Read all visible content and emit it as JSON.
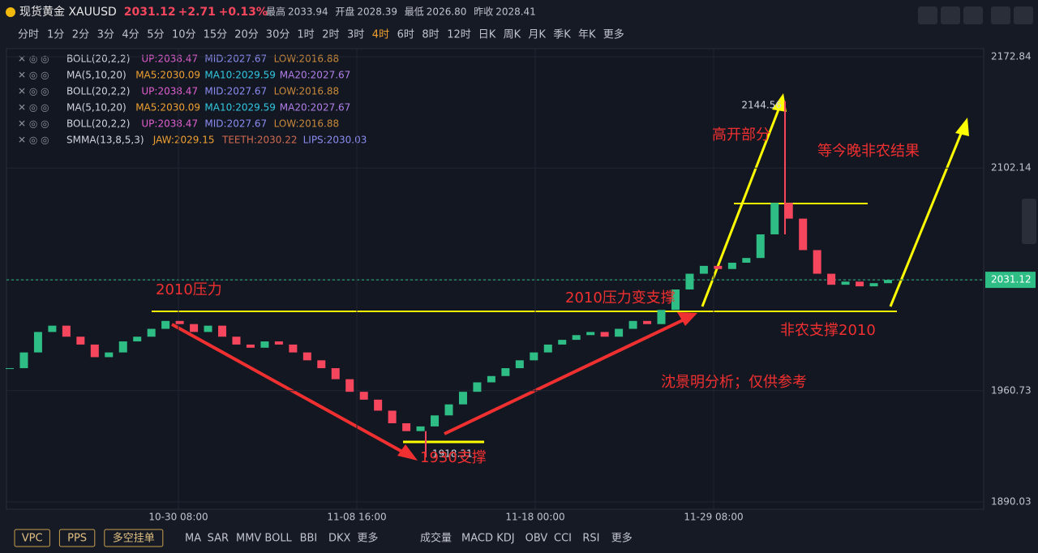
{
  "header": {
    "name": "现货黄金 XAUUSD",
    "price": "2031.12",
    "change": "+2.71",
    "change_pct": "+0.13%",
    "stats": [
      {
        "label": "最高",
        "value": "2033.94"
      },
      {
        "label": "开盘",
        "value": "2028.39"
      },
      {
        "label": "最低",
        "value": "2026.80"
      },
      {
        "label": "昨收",
        "value": "2028.41"
      }
    ]
  },
  "timeframes": [
    {
      "label": "分时"
    },
    {
      "label": "1分"
    },
    {
      "label": "2分"
    },
    {
      "label": "3分"
    },
    {
      "label": "4分"
    },
    {
      "label": "5分"
    },
    {
      "label": "10分"
    },
    {
      "label": "15分"
    },
    {
      "label": "20分"
    },
    {
      "label": "30分"
    },
    {
      "label": "1时"
    },
    {
      "label": "2时"
    },
    {
      "label": "3时"
    },
    {
      "label": "4时",
      "active": true
    },
    {
      "label": "6时"
    },
    {
      "label": "8时"
    },
    {
      "label": "12时"
    },
    {
      "label": "日K"
    },
    {
      "label": "周K"
    },
    {
      "label": "月K"
    },
    {
      "label": "季K"
    },
    {
      "label": "年K"
    },
    {
      "label": "更多"
    }
  ],
  "indicators": [
    [
      {
        "text": "BOLL(20,2,2)",
        "color": "#d0d3dc"
      },
      {
        "text": "UP:2038.47",
        "color": "#e05fd0"
      },
      {
        "text": "MID:2027.67",
        "color": "#8a8cf0"
      },
      {
        "text": "LOW:2016.88",
        "color": "#c8893a"
      }
    ],
    [
      {
        "text": "MA(5,10,20)",
        "color": "#d0d3dc"
      },
      {
        "text": "MA5:2030.09",
        "color": "#f0a030"
      },
      {
        "text": "MA10:2029.59",
        "color": "#30c8e0"
      },
      {
        "text": "MA20:2027.67",
        "color": "#b07ee8"
      }
    ],
    [
      {
        "text": "BOLL(20,2,2)",
        "color": "#d0d3dc"
      },
      {
        "text": "UP:2038.47",
        "color": "#e05fd0"
      },
      {
        "text": "MID:2027.67",
        "color": "#8a8cf0"
      },
      {
        "text": "LOW:2016.88",
        "color": "#c8893a"
      }
    ],
    [
      {
        "text": "MA(5,10,20)",
        "color": "#d0d3dc"
      },
      {
        "text": "MA5:2030.09",
        "color": "#f0a030"
      },
      {
        "text": "MA10:2029.59",
        "color": "#30c8e0"
      },
      {
        "text": "MA20:2027.67",
        "color": "#b07ee8"
      }
    ],
    [
      {
        "text": "BOLL(20,2,2)",
        "color": "#d0d3dc"
      },
      {
        "text": "UP:2038.47",
        "color": "#e05fd0"
      },
      {
        "text": "MID:2027.67",
        "color": "#8a8cf0"
      },
      {
        "text": "LOW:2016.88",
        "color": "#c8893a"
      }
    ],
    [
      {
        "text": "SMMA(13,8,5,3)",
        "color": "#d0d3dc"
      },
      {
        "text": "JAW:2029.15",
        "color": "#f0a030"
      },
      {
        "text": "TEETH:2030.22",
        "color": "#d06a50"
      },
      {
        "text": "LIPS:2030.03",
        "color": "#8a8cf0"
      }
    ]
  ],
  "chart_data": {
    "type": "candlestick",
    "up_color": "#2ebd85",
    "down_color": "#f6465d",
    "values": [
      1975,
      1985,
      1998,
      2002,
      1995,
      1990,
      1982,
      1985,
      1992,
      1995,
      2000,
      2005,
      2003,
      1998,
      2002,
      1995,
      1990,
      1988,
      1992,
      1990,
      1985,
      1980,
      1975,
      1968,
      1960,
      1955,
      1948,
      1940,
      1935,
      1938,
      1945,
      1952,
      1960,
      1966,
      1970,
      1975,
      1980,
      1985,
      1990,
      1993,
      1996,
      1998,
      1995,
      2000,
      2005,
      2003,
      2012,
      2025,
      2035,
      2040,
      2038,
      2042,
      2045,
      2060,
      2080,
      2070,
      2050,
      2035,
      2028,
      2030,
      2027,
      2029,
      2031.12
    ],
    "ylim": [
      1890.03,
      2172.84
    ],
    "yticks": [
      2172.84,
      2102.14,
      2031.12,
      1960.73,
      1890.03
    ],
    "current_price": 2031.12,
    "xtick_labels": [
      "10-30 08:00",
      "11-08 16:00",
      "11-18 00:00",
      "11-29 08:00"
    ],
    "high_marker": 2144.56,
    "low_marker": 1918.31,
    "annotations": [
      "2010压力",
      "2010压力变支撑",
      "1930支撑",
      "高开部分",
      "等今晚非农结果",
      "非农支撑2010",
      "沈景明分析；仅供参考"
    ]
  },
  "bottom_bar": {
    "buttons": [
      "VPC",
      "PPS",
      "多空挂单"
    ],
    "main_indicators": [
      "MA",
      "SAR",
      "MMV",
      "BOLL",
      "BBI",
      "DKX",
      "更多"
    ],
    "sub_indicators": [
      "成交量",
      "MACD",
      "KDJ",
      "OBV",
      "CCI",
      "RSI",
      "更多"
    ]
  }
}
